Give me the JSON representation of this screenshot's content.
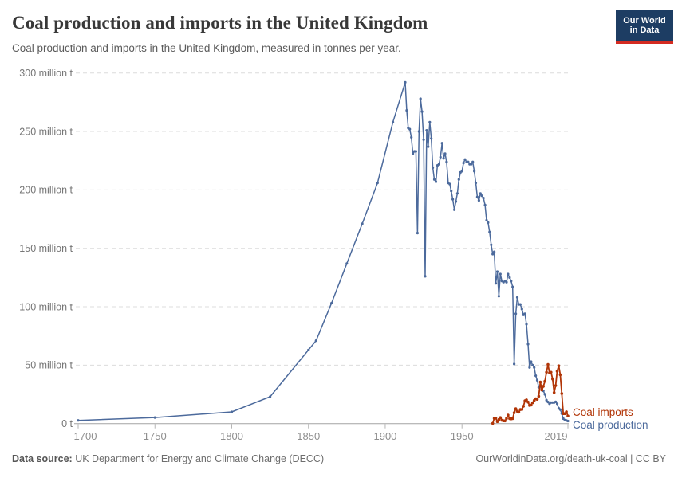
{
  "header": {
    "title": "Coal production and imports in the United Kingdom",
    "subtitle": "Coal production and imports in the United Kingdom, measured in tonnes per year."
  },
  "logo": {
    "line1": "Our World",
    "line2": "in Data"
  },
  "footer": {
    "source_label": "Data source:",
    "source_text": " UK Department for Energy and Climate Change (DECC)",
    "link_text": "OurWorldinData.org/death-uk-coal",
    "separator": " | ",
    "license": "CC BY"
  },
  "colors": {
    "production": "#4C6A9C",
    "imports": "#B13507",
    "grid": "#dcdcdc",
    "axis": "#a3a3a3",
    "tick": "#b5b5b5",
    "x_label": "#8f8f8f",
    "y_label": "#757575"
  },
  "chart_data": {
    "type": "line",
    "title": "Coal production and imports in the United Kingdom",
    "subtitle": "Coal production and imports in the United Kingdom, measured in tonnes per year.",
    "unit": "tonnes per year",
    "grid": true,
    "legend_position": "right-of-line-end",
    "x_axis": {
      "range": [
        1700,
        2019
      ],
      "ticks": [
        {
          "value": 1700,
          "label": "1700"
        },
        {
          "value": 1750,
          "label": "1750"
        },
        {
          "value": 1800,
          "label": "1800"
        },
        {
          "value": 1850,
          "label": "1850"
        },
        {
          "value": 1900,
          "label": "1900"
        },
        {
          "value": 1950,
          "label": "1950"
        },
        {
          "value": 2019,
          "label": "2019"
        }
      ]
    },
    "y_axis": {
      "range": [
        0,
        300000000
      ],
      "ticks": [
        {
          "value": 0,
          "label": "0 t"
        },
        {
          "value": 50,
          "label": "50 million t"
        },
        {
          "value": 100,
          "label": "100 million t"
        },
        {
          "value": 150,
          "label": "150 million t"
        },
        {
          "value": 200,
          "label": "200 million t"
        },
        {
          "value": 250,
          "label": "250 million t"
        },
        {
          "value": 300,
          "label": "300 million t"
        }
      ]
    },
    "series": [
      {
        "name": "Coal production",
        "color": "#4C6A9C",
        "unit": "million tonnes",
        "points": [
          [
            1700,
            2.7
          ],
          [
            1750,
            5.2
          ],
          [
            1800,
            10
          ],
          [
            1825,
            23
          ],
          [
            1850,
            63
          ],
          [
            1855,
            71
          ],
          [
            1865,
            103
          ],
          [
            1875,
            137
          ],
          [
            1885,
            171
          ],
          [
            1895,
            206
          ],
          [
            1905,
            258
          ],
          [
            1913,
            292
          ],
          [
            1914,
            268
          ],
          [
            1915,
            253
          ],
          [
            1916,
            252
          ],
          [
            1917,
            245
          ],
          [
            1918,
            231
          ],
          [
            1919,
            233
          ],
          [
            1920,
            233
          ],
          [
            1921,
            163
          ],
          [
            1922,
            250
          ],
          [
            1923,
            278
          ],
          [
            1924,
            267
          ],
          [
            1925,
            243
          ],
          [
            1926,
            126
          ],
          [
            1927,
            251
          ],
          [
            1928,
            237
          ],
          [
            1929,
            258
          ],
          [
            1930,
            244
          ],
          [
            1931,
            219
          ],
          [
            1932,
            209
          ],
          [
            1933,
            207
          ],
          [
            1934,
            221
          ],
          [
            1935,
            222
          ],
          [
            1936,
            228
          ],
          [
            1937,
            240
          ],
          [
            1938,
            227
          ],
          [
            1939,
            231
          ],
          [
            1940,
            224
          ],
          [
            1941,
            206
          ],
          [
            1942,
            205
          ],
          [
            1943,
            199
          ],
          [
            1944,
            192
          ],
          [
            1945,
            183
          ],
          [
            1946,
            190
          ],
          [
            1947,
            197
          ],
          [
            1948,
            209
          ],
          [
            1949,
            215
          ],
          [
            1950,
            216
          ],
          [
            1951,
            223
          ],
          [
            1952,
            226
          ],
          [
            1953,
            224
          ],
          [
            1954,
            224
          ],
          [
            1955,
            222
          ],
          [
            1956,
            222
          ],
          [
            1957,
            224
          ],
          [
            1958,
            216
          ],
          [
            1959,
            206
          ],
          [
            1960,
            194
          ],
          [
            1961,
            191
          ],
          [
            1962,
            197
          ],
          [
            1963,
            195
          ],
          [
            1964,
            193
          ],
          [
            1965,
            187
          ],
          [
            1966,
            174
          ],
          [
            1967,
            172
          ],
          [
            1968,
            164
          ],
          [
            1969,
            153
          ],
          [
            1970,
            145
          ],
          [
            1971,
            147
          ],
          [
            1972,
            120
          ],
          [
            1973,
            130
          ],
          [
            1974,
            109
          ],
          [
            1975,
            128
          ],
          [
            1976,
            122
          ],
          [
            1977,
            121
          ],
          [
            1978,
            122
          ],
          [
            1979,
            121
          ],
          [
            1980,
            128
          ],
          [
            1981,
            125
          ],
          [
            1982,
            122
          ],
          [
            1983,
            117
          ],
          [
            1984,
            51
          ],
          [
            1985,
            94
          ],
          [
            1986,
            108
          ],
          [
            1987,
            102
          ],
          [
            1988,
            102
          ],
          [
            1989,
            98
          ],
          [
            1990,
            93
          ],
          [
            1991,
            94
          ],
          [
            1992,
            85
          ],
          [
            1993,
            68
          ],
          [
            1994,
            48
          ],
          [
            1995,
            53
          ],
          [
            1996,
            50
          ],
          [
            1997,
            48
          ],
          [
            1998,
            41
          ],
          [
            1999,
            37
          ],
          [
            2000,
            31
          ],
          [
            2001,
            32
          ],
          [
            2002,
            30
          ],
          [
            2003,
            28
          ],
          [
            2004,
            25
          ],
          [
            2005,
            20
          ],
          [
            2006,
            18.5
          ],
          [
            2007,
            17
          ],
          [
            2008,
            18
          ],
          [
            2009,
            18
          ],
          [
            2010,
            18
          ],
          [
            2011,
            18.6
          ],
          [
            2012,
            17
          ],
          [
            2013,
            13
          ],
          [
            2014,
            12
          ],
          [
            2015,
            8.6
          ],
          [
            2016,
            4.2
          ],
          [
            2017,
            3
          ],
          [
            2018,
            2.6
          ],
          [
            2019,
            2.2
          ]
        ]
      },
      {
        "name": "Coal imports",
        "color": "#B13507",
        "unit": "million tonnes",
        "points": [
          [
            1970,
            0.2
          ],
          [
            1971,
            4.5
          ],
          [
            1972,
            4.7
          ],
          [
            1973,
            1.7
          ],
          [
            1974,
            3.5
          ],
          [
            1975,
            5.1
          ],
          [
            1976,
            2.8
          ],
          [
            1977,
            2.4
          ],
          [
            1978,
            2.3
          ],
          [
            1979,
            4.4
          ],
          [
            1980,
            7.3
          ],
          [
            1981,
            4.3
          ],
          [
            1982,
            4.1
          ],
          [
            1983,
            4.3
          ],
          [
            1984,
            9.3
          ],
          [
            1985,
            12.7
          ],
          [
            1986,
            10.6
          ],
          [
            1987,
            9.8
          ],
          [
            1988,
            12.0
          ],
          [
            1989,
            12.1
          ],
          [
            1990,
            14.8
          ],
          [
            1991,
            19.6
          ],
          [
            1992,
            20.3
          ],
          [
            1993,
            18.4
          ],
          [
            1994,
            15.5
          ],
          [
            1995,
            15.9
          ],
          [
            1996,
            17.8
          ],
          [
            1997,
            19.8
          ],
          [
            1998,
            21.2
          ],
          [
            1999,
            20.8
          ],
          [
            2000,
            23.4
          ],
          [
            2001,
            35.5
          ],
          [
            2002,
            28.7
          ],
          [
            2003,
            31.9
          ],
          [
            2004,
            36.2
          ],
          [
            2005,
            43.9
          ],
          [
            2006,
            50.5
          ],
          [
            2007,
            43.4
          ],
          [
            2008,
            43.9
          ],
          [
            2009,
            38.2
          ],
          [
            2010,
            26.5
          ],
          [
            2011,
            32.5
          ],
          [
            2012,
            44.8
          ],
          [
            2013,
            49.4
          ],
          [
            2014,
            41.8
          ],
          [
            2015,
            25.7
          ],
          [
            2016,
            8.5
          ],
          [
            2017,
            8.5
          ],
          [
            2018,
            10.1
          ],
          [
            2019,
            6.5
          ]
        ]
      }
    ]
  }
}
